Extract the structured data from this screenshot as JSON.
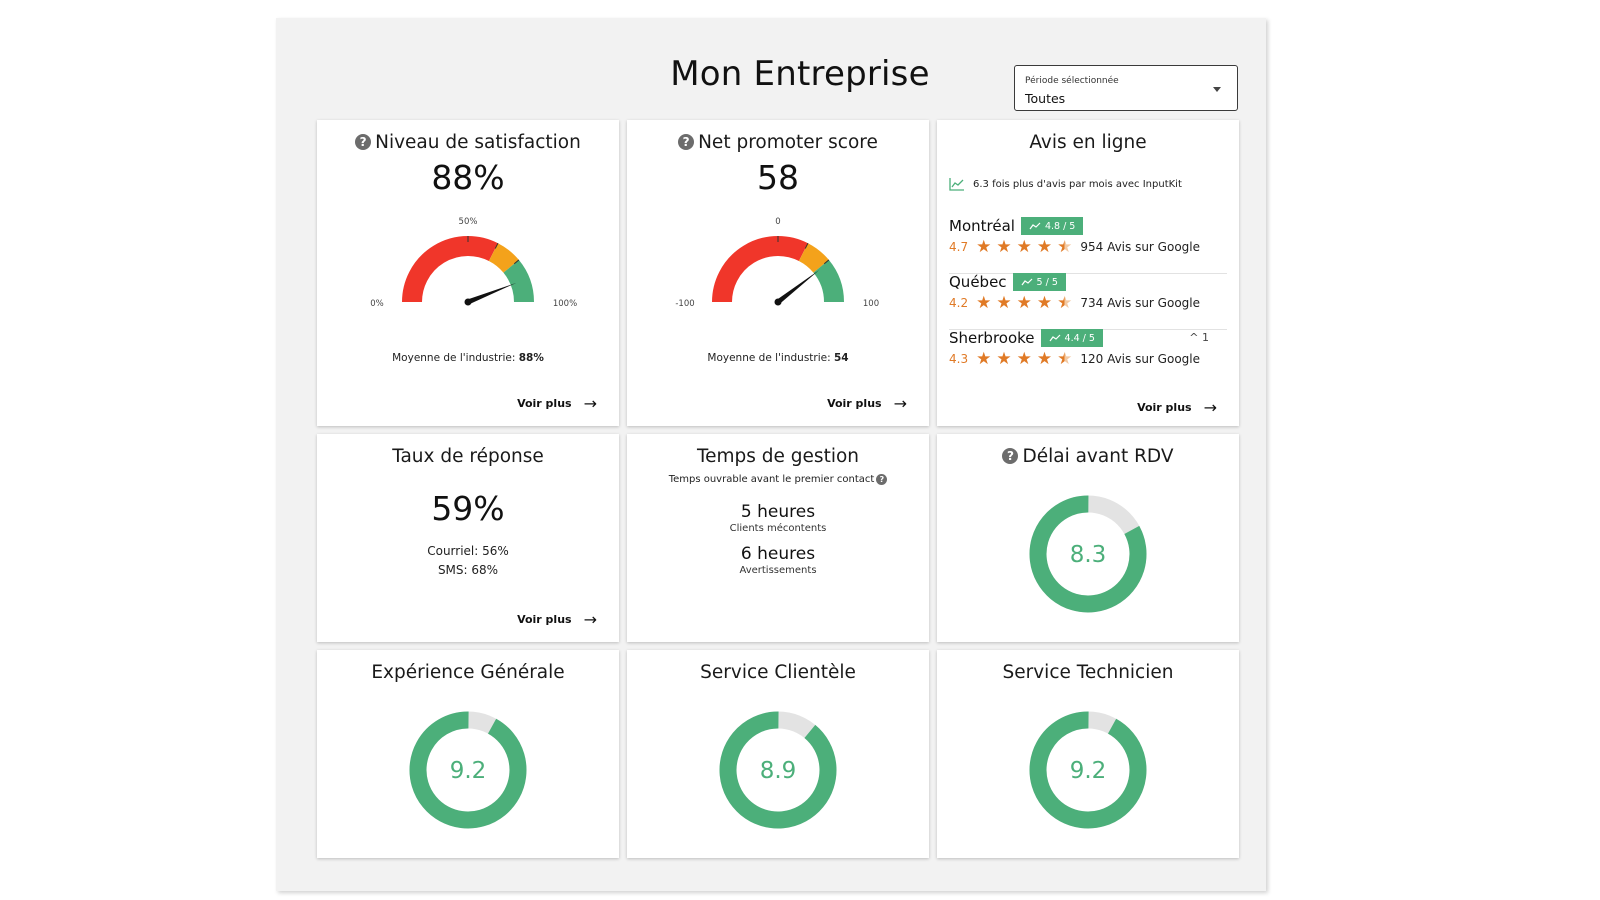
{
  "header": {
    "title": "Mon Entreprise"
  },
  "period": {
    "label": "Période sélectionnée",
    "value": "Toutes"
  },
  "satisfaction": {
    "title": "Niveau de satisfaction",
    "value": "88%",
    "gauge_min_label": "0%",
    "gauge_mid_label": "50%",
    "gauge_max_label": "100%",
    "needle_value": 88,
    "industry_label": "Moyenne de l'industrie:",
    "industry_value": "88%",
    "more": "Voir plus"
  },
  "nps": {
    "title": "Net promoter score",
    "value": "58",
    "gauge_min_label": "-100",
    "gauge_mid_label": "0",
    "gauge_max_label": "100",
    "needle_value": 58,
    "industry_label": "Moyenne de l'industrie:",
    "industry_value": "54",
    "more": "Voir plus"
  },
  "reviews": {
    "title": "Avis en ligne",
    "trend_text": "6.3 fois plus d'avis par mois avec InputKit",
    "locations": [
      {
        "name": "Montréal",
        "badge": "4.8 / 5",
        "rating": "4.7",
        "stars": 4.5,
        "count": "954 Avis sur Google",
        "up": ""
      },
      {
        "name": "Québec",
        "badge": "5 / 5",
        "rating": "4.2",
        "stars": 4.5,
        "count": "734 Avis sur Google",
        "up": ""
      },
      {
        "name": "Sherbrooke",
        "badge": "4.4 / 5",
        "rating": "4.3",
        "stars": 4.5,
        "count": "120 Avis sur Google",
        "up": "1"
      }
    ],
    "more": "Voir plus"
  },
  "response": {
    "title": "Taux de réponse",
    "value": "59%",
    "email": "Courriel: 56%",
    "sms": "SMS: 68%",
    "more": "Voir plus"
  },
  "handling": {
    "title": "Temps de gestion",
    "subtitle": "Temps ouvrable avant le premier contact",
    "metrics": [
      {
        "value": "5 heures",
        "desc": "Clients mécontents"
      },
      {
        "value": "6 heures",
        "desc": "Avertissements"
      }
    ]
  },
  "delay": {
    "title": "Délai avant RDV",
    "value": "8.3",
    "score": 8.3
  },
  "general": {
    "title": "Expérience Générale",
    "value": "9.2",
    "score": 9.2
  },
  "service": {
    "title": "Service Clientèle",
    "value": "8.9",
    "score": 8.9
  },
  "technician": {
    "title": "Service Technicien",
    "value": "9.2",
    "score": 9.2
  },
  "colors": {
    "green": "#4caf7a",
    "red": "#f0362a",
    "orange": "#f4a21b",
    "track": "#e3e3e3",
    "star": "#e07a26"
  }
}
